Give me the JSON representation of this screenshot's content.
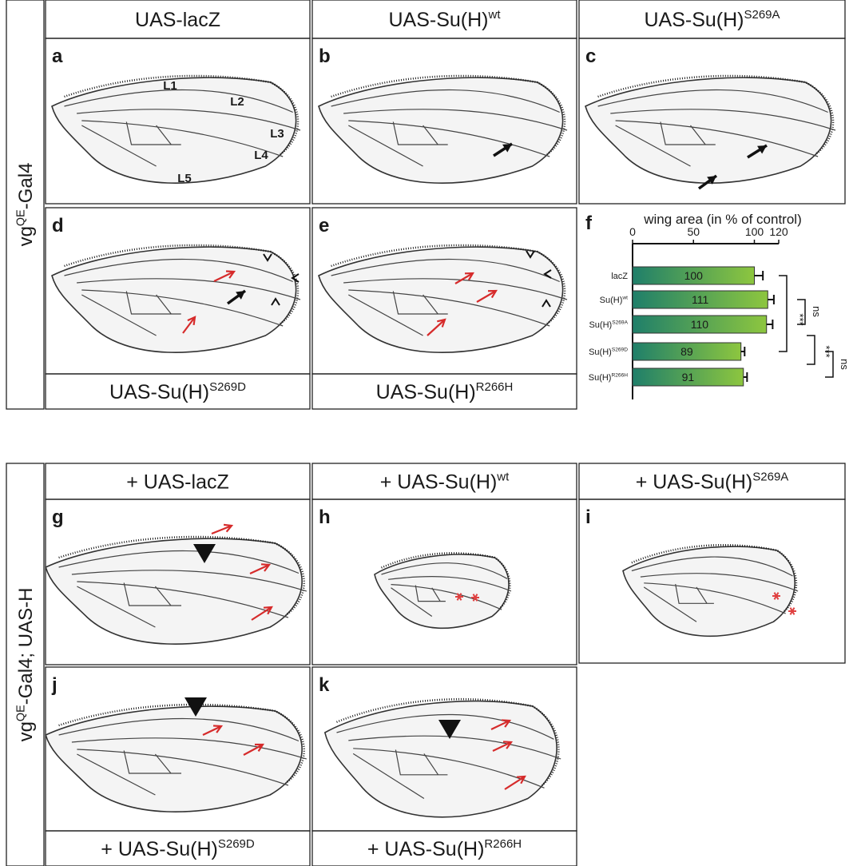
{
  "row_labels": [
    {
      "pre": "vg",
      "sup": "QE",
      "post": "-Gal4"
    },
    {
      "pre": "vg",
      "sup": "QE",
      "post": "-Gal4; UAS-H"
    }
  ],
  "panels": [
    {
      "letter": "a",
      "title": {
        "pre": "UAS-lacZ"
      },
      "vein_labels": [
        "L1",
        "L2",
        "L3",
        "L4",
        "L5"
      ]
    },
    {
      "letter": "b",
      "title": {
        "pre": "UAS-Su(H)",
        "sup": "wt"
      }
    },
    {
      "letter": "c",
      "title": {
        "pre": "UAS-Su(H)",
        "sup": "S269A"
      }
    },
    {
      "letter": "d",
      "title": {
        "pre": "UAS-Su(H)",
        "sup": "S269D"
      }
    },
    {
      "letter": "e",
      "title": {
        "pre": "UAS-Su(H)",
        "sup": "R266H"
      }
    },
    {
      "letter": "f"
    },
    {
      "letter": "g",
      "title": {
        "pre": "+ UAS-lacZ"
      }
    },
    {
      "letter": "h",
      "title": {
        "pre": "+ UAS-Su(H)",
        "sup": "wt"
      }
    },
    {
      "letter": "i",
      "title": {
        "pre": "+ UAS-Su(H)",
        "sup": "S269A"
      }
    },
    {
      "letter": "j",
      "title": {
        "pre": "+ UAS-Su(H)",
        "sup": "S269D"
      }
    },
    {
      "letter": "k",
      "title": {
        "pre": "+ UAS-Su(H)",
        "sup": "R266H"
      }
    }
  ],
  "chart_data": {
    "type": "hbar",
    "title": "wing area (in % of control)",
    "categories": [
      {
        "pre": "lacZ"
      },
      {
        "pre": "Su(H)",
        "sup": "wt"
      },
      {
        "pre": "Su(H)",
        "sup": "S269A"
      },
      {
        "pre": "Su(H)",
        "sup": "S269D"
      },
      {
        "pre": "Su(H)",
        "sup": "R266H"
      }
    ],
    "values": [
      100,
      111,
      110,
      89,
      91
    ],
    "errors": [
      7,
      5,
      5,
      3,
      3
    ],
    "xlim": [
      0,
      120
    ],
    "xticks": [
      0,
      50,
      100,
      120
    ],
    "colors": [
      "#1f7f6a",
      "#8dc63f"
    ],
    "significance": [
      "***",
      "ns",
      "***",
      "ns"
    ]
  }
}
